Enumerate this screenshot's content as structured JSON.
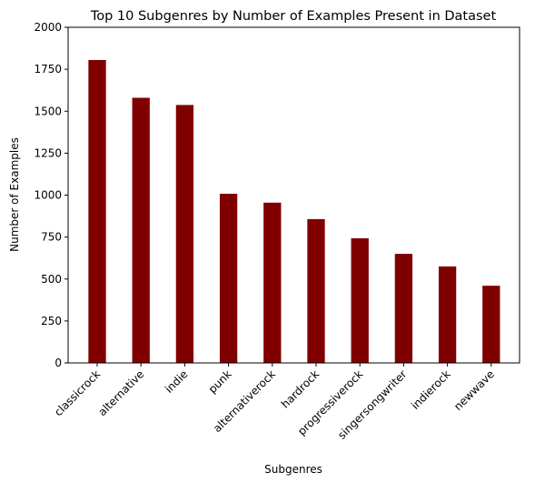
{
  "chart_data": {
    "type": "bar",
    "title": "Top 10 Subgenres by Number of Examples Present in Dataset",
    "xlabel": "Subgenres",
    "ylabel": "Number of Examples",
    "categories": [
      "classicrock",
      "alternative",
      "indie",
      "punk",
      "alternativerock",
      "hardrock",
      "progressiverock",
      "singersongwriter",
      "indierock",
      "newwave"
    ],
    "values": [
      1805,
      1580,
      1537,
      1008,
      955,
      857,
      743,
      650,
      575,
      460
    ],
    "ylim": [
      0,
      2000
    ],
    "yticks": [
      0,
      250,
      500,
      750,
      1000,
      1250,
      1500,
      1750,
      2000
    ],
    "bar_color": "#800000",
    "grid": false,
    "legend": "none"
  }
}
